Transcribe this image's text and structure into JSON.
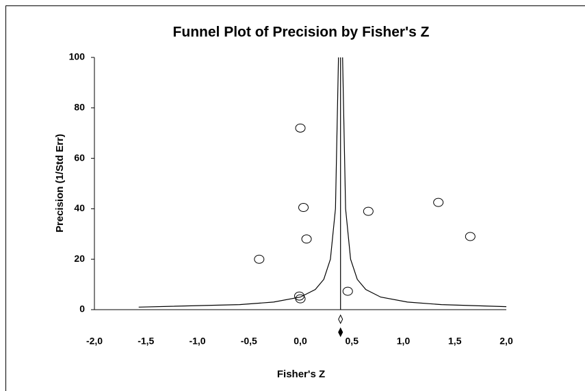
{
  "chart_data": {
    "type": "scatter",
    "title": "Funnel Plot of Precision by Fisher's Z",
    "x_label": "Fisher's Z",
    "y_label": "Precision (1/Std Err)",
    "x": [
      0.0,
      0.03,
      0.06,
      -0.4,
      -0.01,
      0.0,
      0.46,
      0.66,
      1.34,
      1.65
    ],
    "values": [
      72,
      40.5,
      28,
      20,
      5.4,
      4.3,
      7.3,
      39,
      42.5,
      29
    ],
    "center": 0.39,
    "funnel": [
      {
        "x": [
          -1.57,
          -0.59,
          -0.26,
          0.0,
          0.145,
          0.227,
          0.292,
          0.341,
          0.37
        ],
        "values": [
          1,
          2,
          3,
          5,
          8,
          12,
          20,
          40,
          100
        ]
      },
      {
        "x": [
          2.0,
          1.37,
          1.04,
          0.78,
          0.635,
          0.553,
          0.488,
          0.439,
          0.41
        ],
        "values": [
          1.2,
          2,
          3,
          5,
          8,
          12,
          20,
          40,
          100
        ]
      }
    ],
    "xlim": [
      -2,
      2
    ],
    "ylim": [
      0,
      100
    ],
    "xticks": [
      {
        "value": -2,
        "label": "-2,0"
      },
      {
        "value": -1.5,
        "label": "-1,5"
      },
      {
        "value": -1,
        "label": "-1,0"
      },
      {
        "value": -0.5,
        "label": "-0,5"
      },
      {
        "value": 0,
        "label": "0,0"
      },
      {
        "value": 0.5,
        "label": "0,5"
      },
      {
        "value": 1,
        "label": "1,0"
      },
      {
        "value": 1.5,
        "label": "1,5"
      },
      {
        "value": 2,
        "label": "2,0"
      }
    ],
    "yticks": [
      0,
      20,
      40,
      60,
      80,
      100
    ]
  }
}
